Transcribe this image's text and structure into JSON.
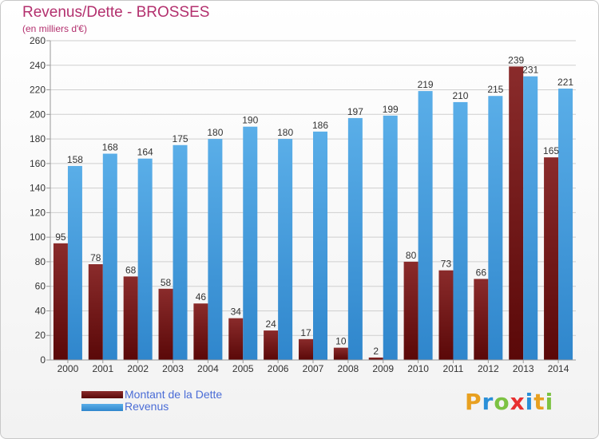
{
  "title": "Revenus/Dette - BROSSES",
  "subtitle": "(en milliers d'€)",
  "colors": {
    "dette": "#7a1a1a",
    "revenus": "#4aa0e0",
    "title": "#b3306e",
    "legend_text": "#4a6cd6"
  },
  "legend": {
    "dette": "Montant de la Dette",
    "revenus": "Revenus"
  },
  "logo": {
    "letters": [
      "P",
      "r",
      "o",
      "x",
      "i",
      "t",
      "i"
    ],
    "colors": [
      "#e8a020",
      "#2a8fd8",
      "#7cc242",
      "#e83030",
      "#2a8fd8",
      "#e8a020",
      "#7cc242"
    ]
  },
  "chart_data": {
    "type": "bar",
    "title": "Revenus/Dette - BROSSES",
    "subtitle": "(en milliers d'€)",
    "categories": [
      "2000",
      "2001",
      "2002",
      "2003",
      "2004",
      "2005",
      "2006",
      "2007",
      "2008",
      "2009",
      "2010",
      "2011",
      "2012",
      "2013",
      "2014"
    ],
    "series": [
      {
        "name": "Montant de la Dette",
        "values": [
          95,
          78,
          68,
          58,
          46,
          34,
          24,
          17,
          10,
          2,
          80,
          73,
          66,
          239,
          165
        ]
      },
      {
        "name": "Revenus",
        "values": [
          158,
          168,
          164,
          175,
          180,
          190,
          180,
          186,
          197,
          199,
          219,
          210,
          215,
          231,
          221
        ]
      }
    ],
    "ylim": [
      0,
      260
    ],
    "yticks": [
      0,
      20,
      40,
      60,
      80,
      100,
      120,
      140,
      160,
      180,
      200,
      220,
      240,
      260
    ],
    "grid": true,
    "legend_position": "bottom-left"
  }
}
